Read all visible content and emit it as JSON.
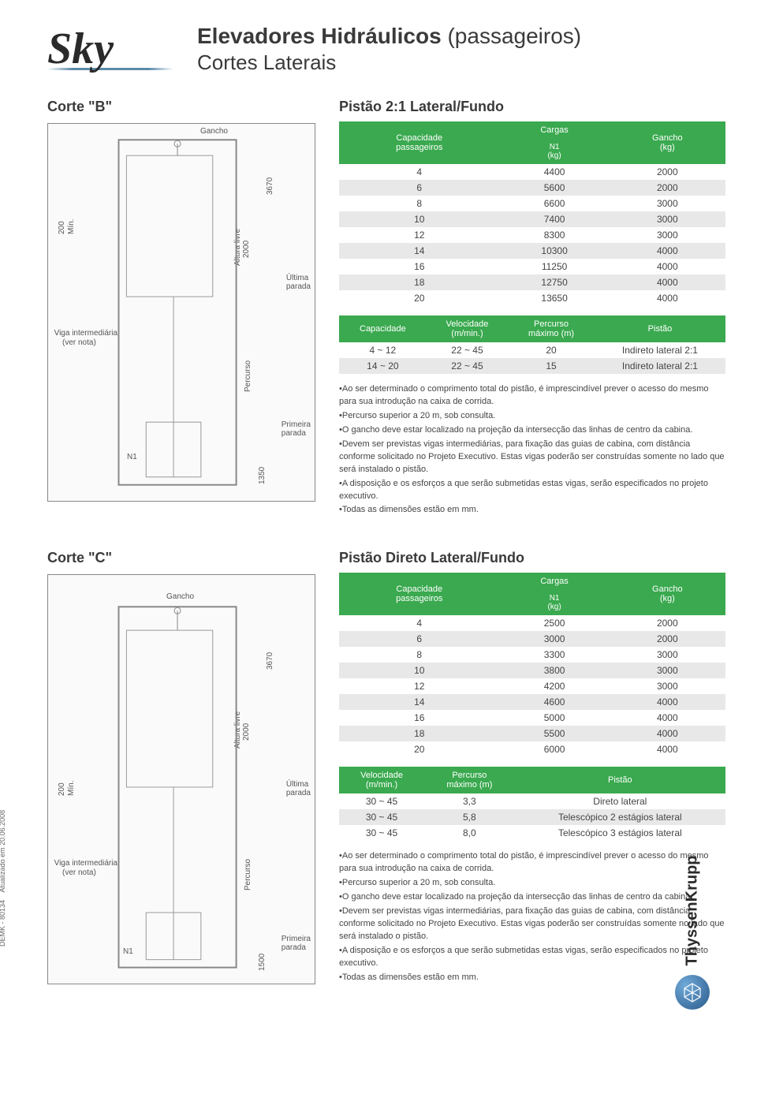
{
  "header": {
    "logo": "Sky",
    "title_bold": "Elevadores Hidráulicos",
    "title_light": "(passageiros)",
    "subtitle": "Cortes Laterais"
  },
  "corte_b": {
    "title": "Corte \"B\"",
    "diagram": {
      "labels": {
        "gancho": "Gancho",
        "min_200": "200",
        "min_label": "Mín.",
        "viga": "Viga intermediária",
        "viga2": "(ver nota)",
        "n1": "N1",
        "dim_3670": "3670",
        "dim_2000": "2000",
        "altura_livre": "Altura livre",
        "ultima_parada": "Última\nparada",
        "percurso": "Percurso",
        "primeira_parada": "Primeira\nparada",
        "dim_1350": "1350"
      }
    },
    "section_title": "Pistão 2:1 Lateral/Fundo",
    "table1": {
      "header_span": "Cargas",
      "col1": "Capacidade\npassageiros",
      "col2": "N1\n(kg)",
      "col3": "Gancho\n(kg)",
      "rows": [
        [
          "4",
          "4400",
          "2000"
        ],
        [
          "6",
          "5600",
          "2000"
        ],
        [
          "8",
          "6600",
          "3000"
        ],
        [
          "10",
          "7400",
          "3000"
        ],
        [
          "12",
          "8300",
          "3000"
        ],
        [
          "14",
          "10300",
          "4000"
        ],
        [
          "16",
          "11250",
          "4000"
        ],
        [
          "18",
          "12750",
          "4000"
        ],
        [
          "20",
          "13650",
          "4000"
        ]
      ]
    },
    "table2": {
      "col1": "Capacidade",
      "col2": "Velocidade\n(m/min.)",
      "col3": "Percurso\nmáximo (m)",
      "col4": "Pistão",
      "rows": [
        [
          "4 ~ 12",
          "22 ~ 45",
          "20",
          "Indireto lateral 2:1"
        ],
        [
          "14 ~ 20",
          "22 ~ 45",
          "15",
          "Indireto lateral 2:1"
        ]
      ]
    },
    "notes": [
      "•Ao ser determinado o comprimento total do pistão, é imprescindível prever o acesso do mesmo para sua introdução na caixa de corrida.",
      "•Percurso superior a 20 m, sob consulta.",
      "•O gancho deve estar localizado na projeção da intersecção das linhas de centro da cabina.",
      "•Devem ser previstas vigas intermediárias, para fixação das guias de cabina, com distância conforme solicitado no Projeto Executivo. Estas vigas poderão ser construídas somente no lado que será instalado o pistão.",
      "•A disposição e os esforços a que serão submetidas estas vigas, serão especificados no projeto executivo.",
      "•Todas as dimensões estão em mm."
    ]
  },
  "corte_c": {
    "title": "Corte \"C\"",
    "diagram": {
      "labels": {
        "gancho": "Gancho",
        "min_200": "200",
        "min_label": "Mín.",
        "viga": "Viga intermediária",
        "viga2": "(ver nota)",
        "n1": "N1",
        "dim_3670": "3670",
        "dim_2000": "2000",
        "altura_livre": "Altura livre",
        "ultima_parada": "Última\nparada",
        "percurso": "Percurso",
        "primeira_parada": "Primeira\nparada",
        "dim_1500": "1500"
      }
    },
    "section_title": "Pistão Direto Lateral/Fundo",
    "table1": {
      "header_span": "Cargas",
      "col1": "Capacidade\npassageiros",
      "col2": "N1\n(kg)",
      "col3": "Gancho\n(kg)",
      "rows": [
        [
          "4",
          "2500",
          "2000"
        ],
        [
          "6",
          "3000",
          "2000"
        ],
        [
          "8",
          "3300",
          "3000"
        ],
        [
          "10",
          "3800",
          "3000"
        ],
        [
          "12",
          "4200",
          "3000"
        ],
        [
          "14",
          "4600",
          "4000"
        ],
        [
          "16",
          "5000",
          "4000"
        ],
        [
          "18",
          "5500",
          "4000"
        ],
        [
          "20",
          "6000",
          "4000"
        ]
      ]
    },
    "table2": {
      "col1": "Velocidade\n(m/min.)",
      "col2": "Percurso\nmáximo (m)",
      "col3": "Pistão",
      "rows": [
        [
          "30 ~ 45",
          "3,3",
          "Direto lateral"
        ],
        [
          "30 ~ 45",
          "5,8",
          "Telescópico 2 estágios lateral"
        ],
        [
          "30 ~ 45",
          "8,0",
          "Telescópico 3 estágios lateral"
        ]
      ]
    },
    "notes": [
      "•Ao ser determinado o comprimento total do pistão, é imprescindível prever o acesso do mesmo para sua introdução na caixa de corrida.",
      "•Percurso superior a 20 m, sob consulta.",
      "•O gancho deve estar localizado na projeção da intersecção das linhas de centro da cabina.",
      "•Devem ser previstas vigas intermediárias, para fixação das guias de cabina, com distância conforme solicitado no Projeto Executivo. Estas vigas poderão ser construídas somente no lado que será instalado o pistão.",
      "•A disposição e os esforços a que serão submetidas estas vigas, serão especificados no projeto executivo.",
      "•Todas as dimensões estão em mm."
    ]
  },
  "meta": {
    "code": "DEMK - 80134",
    "date": "Atualizado em 20.06.2008"
  },
  "brand": {
    "name": "ThyssenKrupp"
  },
  "colors": {
    "green": "#3aa94f",
    "row_alt": "#e8e8e8",
    "text": "#3a3a3a"
  }
}
